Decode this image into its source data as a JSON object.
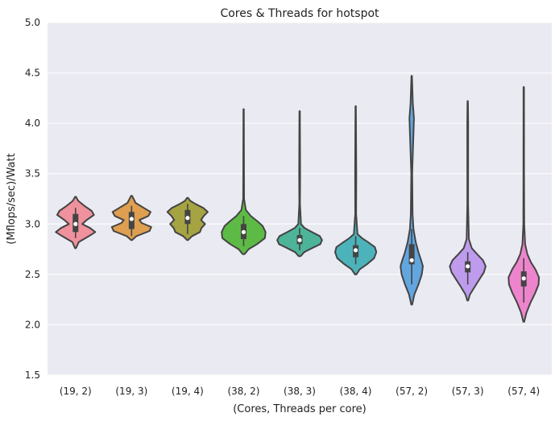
{
  "chart_data": {
    "type": "violin",
    "title": "Cores & Threads for hotspot",
    "xlabel": "(Cores, Threads per core)",
    "ylabel": "(Mflops/sec)/Watt",
    "ylim": [
      1.5,
      5.0
    ],
    "yticks": [
      "1.5",
      "2.0",
      "2.5",
      "3.0",
      "3.5",
      "4.0",
      "4.5",
      "5.0"
    ],
    "grid": true,
    "background": "#EAEAF2",
    "categories": [
      "(19, 2)",
      "(19, 3)",
      "(19, 4)",
      "(38, 2)",
      "(38, 3)",
      "(38, 4)",
      "(57, 2)",
      "(57, 3)",
      "(57, 4)"
    ],
    "colors": [
      "#F0919E",
      "#DF9F50",
      "#A6A442",
      "#5DBB45",
      "#4DB49A",
      "#4CB3BA",
      "#62A6E0",
      "#BE9BED",
      "#EE84CC"
    ],
    "violins": [
      {
        "min": 2.76,
        "max": 3.27,
        "q1": 2.92,
        "median": 3.0,
        "q3": 3.1,
        "whisker_low": 2.86,
        "whisker_high": 3.16,
        "profile": [
          [
            2.76,
            0.02
          ],
          [
            2.82,
            0.14
          ],
          [
            2.88,
            0.6
          ],
          [
            2.92,
            0.88
          ],
          [
            2.96,
            0.65
          ],
          [
            3.0,
            0.3
          ],
          [
            3.04,
            0.5
          ],
          [
            3.09,
            0.82
          ],
          [
            3.13,
            0.72
          ],
          [
            3.18,
            0.4
          ],
          [
            3.23,
            0.12
          ],
          [
            3.27,
            0.02
          ]
        ]
      },
      {
        "min": 2.84,
        "max": 3.28,
        "q1": 2.95,
        "median": 3.05,
        "q3": 3.12,
        "whisker_low": 2.88,
        "whisker_high": 3.18,
        "profile": [
          [
            2.84,
            0.02
          ],
          [
            2.88,
            0.22
          ],
          [
            2.93,
            0.8
          ],
          [
            2.97,
            0.88
          ],
          [
            3.01,
            0.45
          ],
          [
            3.04,
            0.35
          ],
          [
            3.08,
            0.75
          ],
          [
            3.12,
            0.85
          ],
          [
            3.16,
            0.55
          ],
          [
            3.21,
            0.18
          ],
          [
            3.28,
            0.02
          ]
        ]
      },
      {
        "min": 2.84,
        "max": 3.26,
        "q1": 3.0,
        "median": 3.06,
        "q3": 3.14,
        "whisker_low": 2.9,
        "whisker_high": 3.2,
        "profile": [
          [
            2.84,
            0.02
          ],
          [
            2.88,
            0.2
          ],
          [
            2.92,
            0.55
          ],
          [
            2.96,
            0.62
          ],
          [
            3.0,
            0.78
          ],
          [
            3.04,
            0.6
          ],
          [
            3.08,
            0.72
          ],
          [
            3.12,
            0.9
          ],
          [
            3.16,
            0.7
          ],
          [
            3.2,
            0.35
          ],
          [
            3.23,
            0.12
          ],
          [
            3.26,
            0.02
          ]
        ]
      },
      {
        "min": 2.7,
        "max": 4.14,
        "q1": 2.85,
        "median": 2.92,
        "q3": 3.0,
        "whisker_low": 2.78,
        "whisker_high": 3.08,
        "profile": [
          [
            2.7,
            0.04
          ],
          [
            2.75,
            0.22
          ],
          [
            2.8,
            0.6
          ],
          [
            2.86,
            0.95
          ],
          [
            2.92,
            0.98
          ],
          [
            2.98,
            0.85
          ],
          [
            3.03,
            0.6
          ],
          [
            3.08,
            0.32
          ],
          [
            3.14,
            0.1
          ],
          [
            3.25,
            0.02
          ],
          [
            3.5,
            0.015
          ],
          [
            4.14,
            0.01
          ]
        ]
      },
      {
        "min": 2.68,
        "max": 4.12,
        "q1": 2.8,
        "median": 2.84,
        "q3": 2.89,
        "whisker_low": 2.74,
        "whisker_high": 2.96,
        "profile": [
          [
            2.68,
            0.04
          ],
          [
            2.72,
            0.2
          ],
          [
            2.76,
            0.55
          ],
          [
            2.8,
            0.92
          ],
          [
            2.84,
            1.0
          ],
          [
            2.88,
            0.9
          ],
          [
            2.92,
            0.55
          ],
          [
            2.96,
            0.22
          ],
          [
            3.0,
            0.06
          ],
          [
            3.2,
            0.015
          ],
          [
            3.5,
            0.02
          ],
          [
            4.12,
            0.01
          ]
        ]
      },
      {
        "min": 2.5,
        "max": 4.17,
        "q1": 2.67,
        "median": 2.74,
        "q3": 2.79,
        "whisker_low": 2.6,
        "whisker_high": 2.88,
        "profile": [
          [
            2.5,
            0.03
          ],
          [
            2.55,
            0.18
          ],
          [
            2.6,
            0.5
          ],
          [
            2.66,
            0.82
          ],
          [
            2.72,
            0.92
          ],
          [
            2.77,
            0.86
          ],
          [
            2.82,
            0.55
          ],
          [
            2.86,
            0.28
          ],
          [
            2.9,
            0.08
          ],
          [
            3.1,
            0.02
          ],
          [
            3.5,
            0.025
          ],
          [
            4.17,
            0.01
          ]
        ]
      },
      {
        "min": 2.2,
        "max": 4.47,
        "q1": 2.6,
        "median": 2.64,
        "q3": 2.8,
        "whisker_low": 2.4,
        "whisker_high": 2.95,
        "profile": [
          [
            2.2,
            0.02
          ],
          [
            2.3,
            0.12
          ],
          [
            2.4,
            0.3
          ],
          [
            2.5,
            0.45
          ],
          [
            2.58,
            0.5
          ],
          [
            2.64,
            0.42
          ],
          [
            2.72,
            0.3
          ],
          [
            2.82,
            0.18
          ],
          [
            2.95,
            0.08
          ],
          [
            3.1,
            0.04
          ],
          [
            3.5,
            0.02
          ],
          [
            3.9,
            0.08
          ],
          [
            4.05,
            0.1
          ],
          [
            4.2,
            0.05
          ],
          [
            4.47,
            0.01
          ]
        ]
      },
      {
        "min": 2.24,
        "max": 4.22,
        "q1": 2.52,
        "median": 2.58,
        "q3": 2.63,
        "whisker_low": 2.4,
        "whisker_high": 2.72,
        "profile": [
          [
            2.24,
            0.02
          ],
          [
            2.3,
            0.1
          ],
          [
            2.38,
            0.32
          ],
          [
            2.45,
            0.52
          ],
          [
            2.52,
            0.72
          ],
          [
            2.58,
            0.8
          ],
          [
            2.64,
            0.68
          ],
          [
            2.7,
            0.42
          ],
          [
            2.76,
            0.18
          ],
          [
            2.85,
            0.05
          ],
          [
            3.2,
            0.015
          ],
          [
            4.0,
            0.02
          ],
          [
            4.22,
            0.01
          ]
        ]
      },
      {
        "min": 2.03,
        "max": 4.36,
        "q1": 2.38,
        "median": 2.46,
        "q3": 2.53,
        "whisker_low": 2.22,
        "whisker_high": 2.66,
        "profile": [
          [
            2.03,
            0.02
          ],
          [
            2.12,
            0.12
          ],
          [
            2.22,
            0.3
          ],
          [
            2.32,
            0.52
          ],
          [
            2.4,
            0.66
          ],
          [
            2.47,
            0.68
          ],
          [
            2.55,
            0.52
          ],
          [
            2.62,
            0.32
          ],
          [
            2.7,
            0.16
          ],
          [
            2.8,
            0.06
          ],
          [
            3.0,
            0.02
          ],
          [
            3.5,
            0.015
          ],
          [
            4.36,
            0.01
          ]
        ]
      }
    ]
  }
}
